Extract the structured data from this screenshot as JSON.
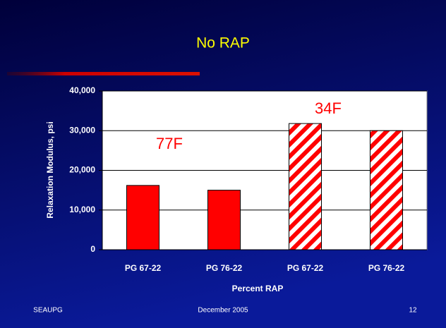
{
  "chart_data": {
    "type": "bar",
    "title": "No RAP",
    "categories": [
      "PG 67-22",
      "PG 76-22",
      "PG 67-22",
      "PG 76-22"
    ],
    "values": [
      16200,
      15000,
      31800,
      30000
    ],
    "color": "#ff0000",
    "bar_fill": [
      "solid",
      "solid",
      "hatched",
      "hatched"
    ],
    "ylim": [
      0,
      40000
    ],
    "yticks": [
      0,
      {
        "value": 10000,
        "label": "10,000"
      },
      {
        "value": 20000,
        "label": "20,000"
      },
      {
        "value": 30000,
        "label": "30,000"
      },
      {
        "value": 40000,
        "label": "40,000"
      }
    ],
    "grid": true,
    "y_label": "Relaxation Modulus, psi",
    "x_label": "Percent RAP",
    "annotations": [
      "77F",
      "34F"
    ]
  },
  "footer": {
    "left": "SEAUPG",
    "center": "December 2005",
    "right": "12"
  }
}
